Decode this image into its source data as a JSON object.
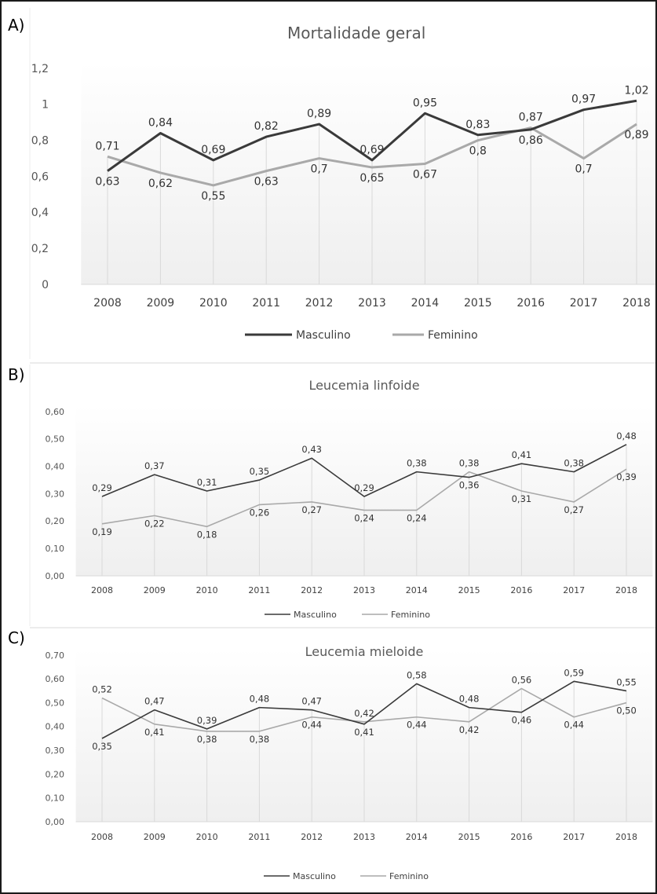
{
  "panels": [
    {
      "letter": "A)"
    },
    {
      "letter": "B)"
    },
    {
      "letter": "C)"
    }
  ],
  "colors": {
    "masculino": "#3a3a3a",
    "feminino": "#a9a9a9",
    "grid": "#d9d9d9",
    "text": "#555555"
  },
  "chart_data": [
    {
      "type": "line",
      "title": "Mortalidade geral",
      "categories": [
        "2008",
        "2009",
        "2010",
        "2011",
        "2012",
        "2013",
        "2014",
        "2015",
        "2016",
        "2017",
        "2018"
      ],
      "ylim": [
        0,
        1.2
      ],
      "yticks": [
        "0",
        "0,2",
        "0,4",
        "0,6",
        "0,8",
        "1",
        "1,2"
      ],
      "legend": "bottom",
      "series": [
        {
          "name": "Masculino",
          "values": [
            0.63,
            0.84,
            0.69,
            0.82,
            0.89,
            0.69,
            0.95,
            0.83,
            0.86,
            0.97,
            1.02
          ],
          "labels": [
            "0,63",
            "0,84",
            "0,69",
            "0,82",
            "0,89",
            "0,69",
            "0,95",
            "0,83",
            "0,86",
            "0,97",
            "1,02"
          ]
        },
        {
          "name": "Feminino",
          "values": [
            0.71,
            0.62,
            0.55,
            0.63,
            0.7,
            0.65,
            0.67,
            0.8,
            0.87,
            0.7,
            0.89
          ],
          "labels": [
            "0,71",
            "0,62",
            "0,55",
            "0,63",
            "0,7",
            "0,65",
            "0,67",
            "0,8",
            "0,87",
            "0,7",
            "0,89"
          ]
        }
      ]
    },
    {
      "type": "line",
      "title": "Leucemia linfoide",
      "categories": [
        "2008",
        "2009",
        "2010",
        "2011",
        "2012",
        "2013",
        "2014",
        "2015",
        "2016",
        "2017",
        "2018"
      ],
      "ylim": [
        0,
        0.6
      ],
      "yticks": [
        "0,00",
        "0,10",
        "0,20",
        "0,30",
        "0,40",
        "0,50",
        "0,60"
      ],
      "legend": "bottom",
      "series": [
        {
          "name": "Masculino",
          "values": [
            0.29,
            0.37,
            0.31,
            0.35,
            0.43,
            0.29,
            0.38,
            0.36,
            0.41,
            0.38,
            0.48
          ],
          "labels": [
            "0,29",
            "0,37",
            "0,31",
            "0,35",
            "0,43",
            "0,29",
            "0,38",
            "0,36",
            "0,41",
            "0,38",
            "0,48"
          ]
        },
        {
          "name": "Feminino",
          "values": [
            0.19,
            0.22,
            0.18,
            0.26,
            0.27,
            0.24,
            0.24,
            0.38,
            0.31,
            0.27,
            0.39
          ],
          "labels": [
            "0,19",
            "0,22",
            "0,18",
            "0,26",
            "0,27",
            "0,24",
            "0,24",
            "0,38",
            "0,31",
            "0,27",
            "0,39"
          ]
        }
      ]
    },
    {
      "type": "line",
      "title": "Leucemia mieloide",
      "categories": [
        "2008",
        "2009",
        "2010",
        "2011",
        "2012",
        "2013",
        "2014",
        "2015",
        "2016",
        "2017",
        "2018"
      ],
      "ylim": [
        0,
        0.7
      ],
      "yticks": [
        "0,00",
        "0,10",
        "0,20",
        "0,30",
        "0,40",
        "0,50",
        "0,60",
        "0,70"
      ],
      "legend": "bottom",
      "series": [
        {
          "name": "Masculino",
          "values": [
            0.35,
            0.47,
            0.39,
            0.48,
            0.47,
            0.41,
            0.58,
            0.48,
            0.46,
            0.59,
            0.55
          ],
          "labels": [
            "0,35",
            "0,47",
            "0,39",
            "0,48",
            "0,47",
            "0,41",
            "0,58",
            "0,48",
            "0,46",
            "0,59",
            "0,55"
          ]
        },
        {
          "name": "Feminino",
          "values": [
            0.52,
            0.41,
            0.38,
            0.38,
            0.44,
            0.42,
            0.44,
            0.42,
            0.56,
            0.44,
            0.5
          ],
          "labels": [
            "0,52",
            "0,41",
            "0,38",
            "0,38",
            "0,44",
            "0,42",
            "0,44",
            "0,42",
            "0,56",
            "0,44",
            "0,50"
          ]
        }
      ]
    }
  ]
}
